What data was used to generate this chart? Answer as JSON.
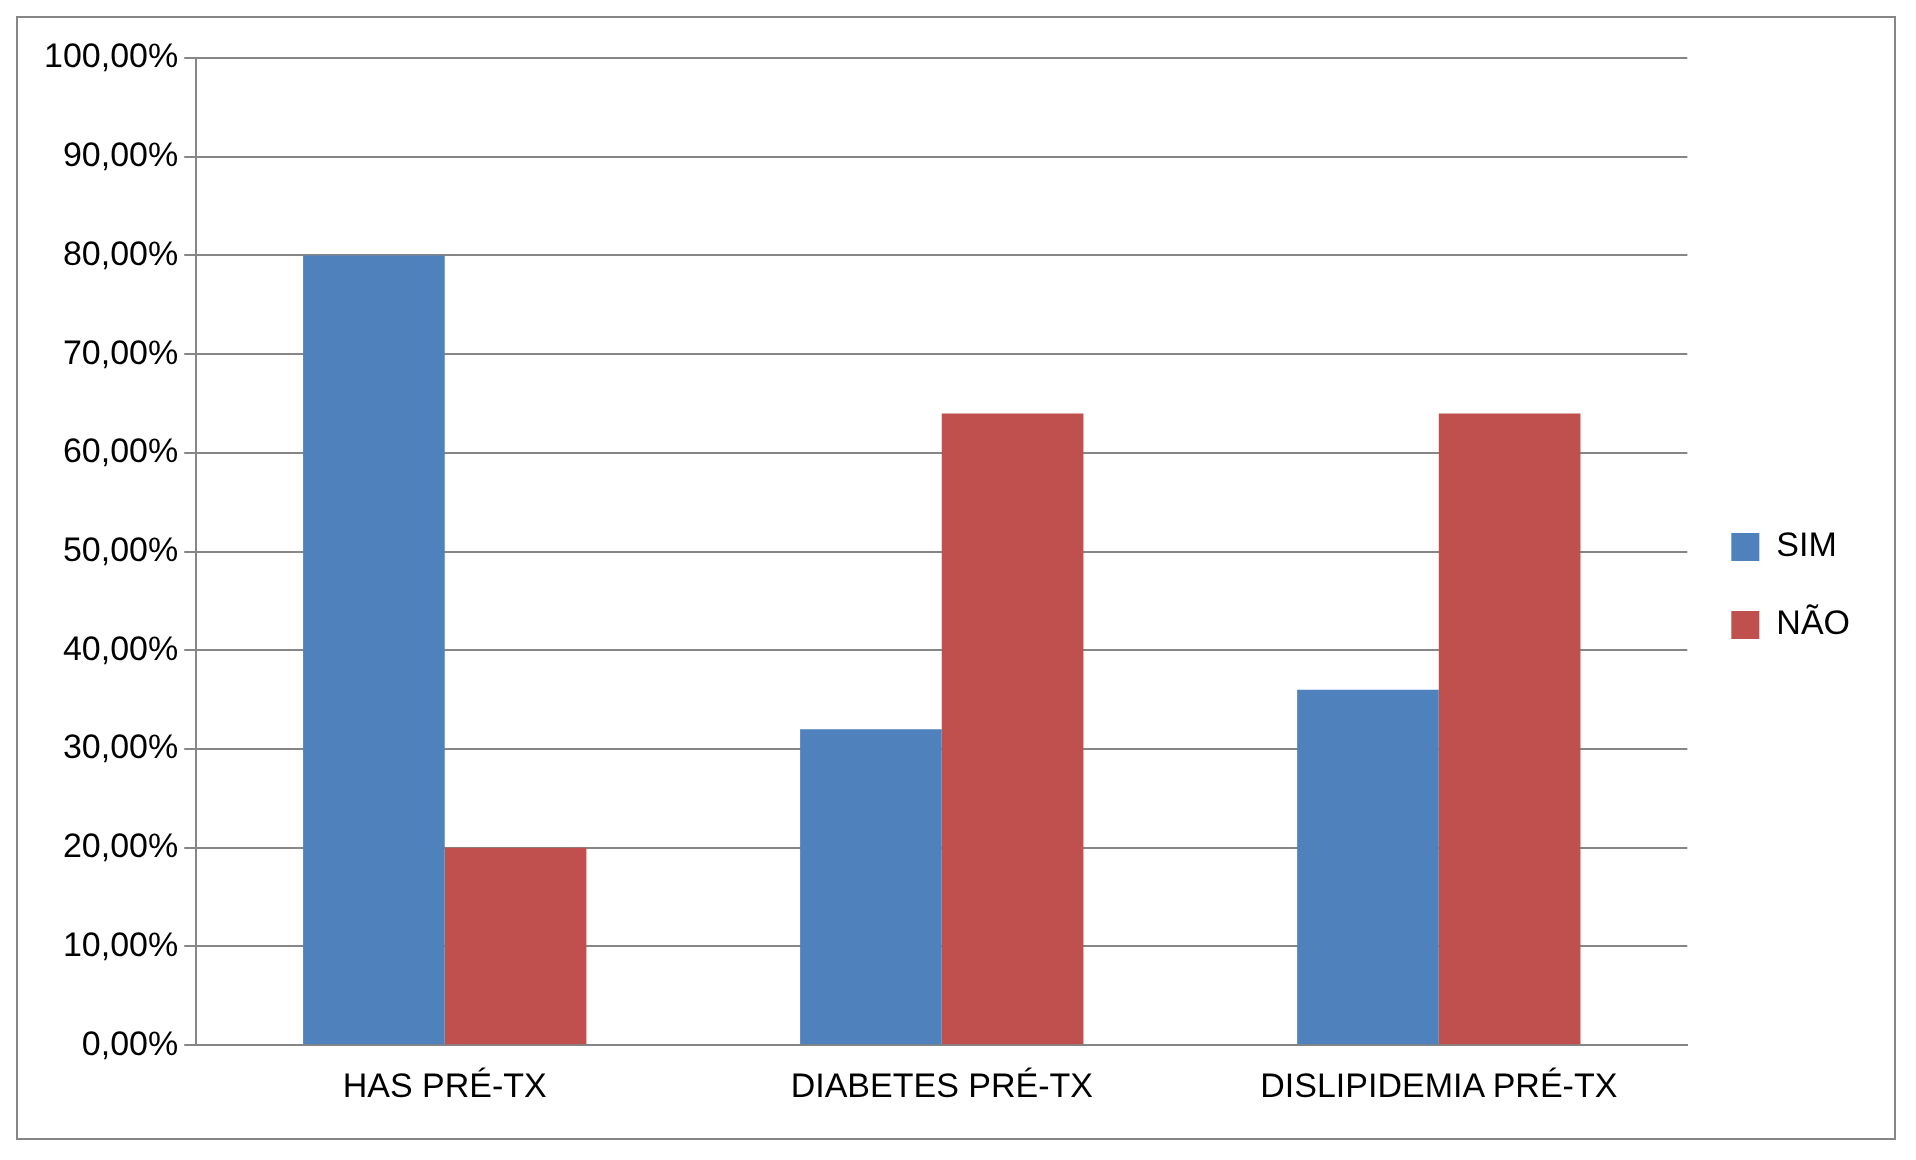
{
  "chart_data": {
    "type": "bar",
    "categories": [
      "HAS PRÉ-TX",
      "DIABETES PRÉ-TX",
      "DISLIPIDEMIA PRÉ-TX"
    ],
    "series": [
      {
        "name": "SIM",
        "color": "#4f81bd",
        "values": [
          80,
          32,
          36
        ]
      },
      {
        "name": "NÃO",
        "color": "#c0504d",
        "values": [
          20,
          64,
          64
        ]
      }
    ],
    "ylim": [
      0,
      100
    ],
    "yticks": [
      {
        "value": 0,
        "label": "0,00%"
      },
      {
        "value": 10,
        "label": "10,00%"
      },
      {
        "value": 20,
        "label": "20,00%"
      },
      {
        "value": 30,
        "label": "30,00%"
      },
      {
        "value": 40,
        "label": "40,00%"
      },
      {
        "value": 50,
        "label": "50,00%"
      },
      {
        "value": 60,
        "label": "60,00%"
      },
      {
        "value": 70,
        "label": "70,00%"
      },
      {
        "value": 80,
        "label": "80,00%"
      },
      {
        "value": 90,
        "label": "90,00%"
      },
      {
        "value": 100,
        "label": "100,00%"
      }
    ],
    "grid": "y",
    "legend": "right"
  }
}
